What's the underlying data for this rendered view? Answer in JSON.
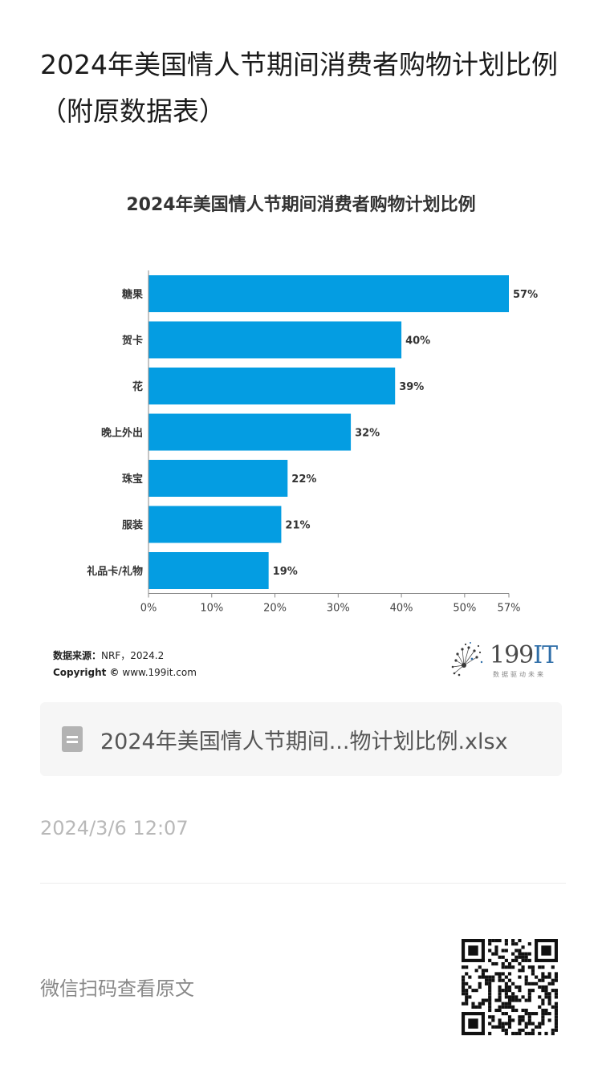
{
  "article": {
    "title": "2024年美国情人节期间消费者购物计划比例（附原数据表）"
  },
  "chart_data": {
    "type": "bar",
    "orientation": "horizontal",
    "title": "2024年美国情人节期间消费者购物计划比例",
    "categories": [
      "糖果",
      "贺卡",
      "花",
      "晚上外出",
      "珠宝",
      "服装",
      "礼品卡/礼物"
    ],
    "values": [
      57,
      40,
      39,
      32,
      22,
      21,
      19
    ],
    "value_labels": [
      "57%",
      "40%",
      "39%",
      "32%",
      "22%",
      "21%",
      "19%"
    ],
    "xticks": [
      0,
      10,
      20,
      30,
      40,
      50,
      57
    ],
    "xtick_labels": [
      "0%",
      "10%",
      "20%",
      "30%",
      "40%",
      "50%",
      "57%"
    ],
    "xlim": [
      0,
      57
    ],
    "bar_color": "#049de2",
    "grid": false,
    "legend": "none"
  },
  "source": {
    "label": "数据来源：",
    "text": "NRF，2024.2",
    "copyright_label": "Copyright ©",
    "copyright_site": "www.199it.com"
  },
  "logo": {
    "text_num": "199",
    "text_it": "IT",
    "subtitle": "数据驱动未来"
  },
  "attachment": {
    "filename": "2024年美国情人节期间...物计划比例.xlsx"
  },
  "meta": {
    "date": "2024/3/6 12:07",
    "qr_label": "微信扫码查看原文"
  },
  "icons": {
    "file": "spreadsheet-file-icon",
    "qr": "qr-code-icon",
    "logo": "dandelion-logo-icon"
  },
  "colors": {
    "accent": "#049de2",
    "logo_blue": "#2f6ea8",
    "muted_text": "#b8b8b8"
  }
}
